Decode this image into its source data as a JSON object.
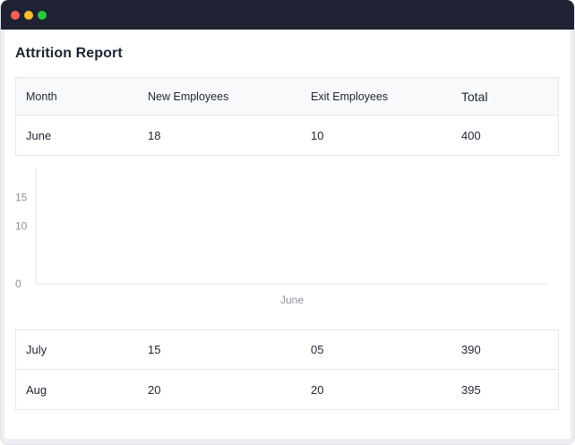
{
  "report": {
    "title": "Attrition Report",
    "columns": [
      "Month",
      "New Employees",
      "Exit Employees",
      "Total"
    ],
    "rows_top": [
      {
        "month": "June",
        "new": "18",
        "exit": "10",
        "total": "400"
      }
    ],
    "rows_bottom": [
      {
        "month": "July",
        "new": "15",
        "exit": "05",
        "total": "390"
      },
      {
        "month": "Aug",
        "new": "20",
        "exit": "20",
        "total": "395"
      }
    ]
  },
  "chart_data": {
    "type": "bar",
    "categories": [
      "June"
    ],
    "series": [],
    "yticks": [
      0,
      10,
      15
    ],
    "ylim": [
      0,
      20
    ],
    "grid": false
  },
  "colors": {
    "titlebar": "#1e2233",
    "axis": "#e3e5ea",
    "tick_text": "#8b909c"
  }
}
